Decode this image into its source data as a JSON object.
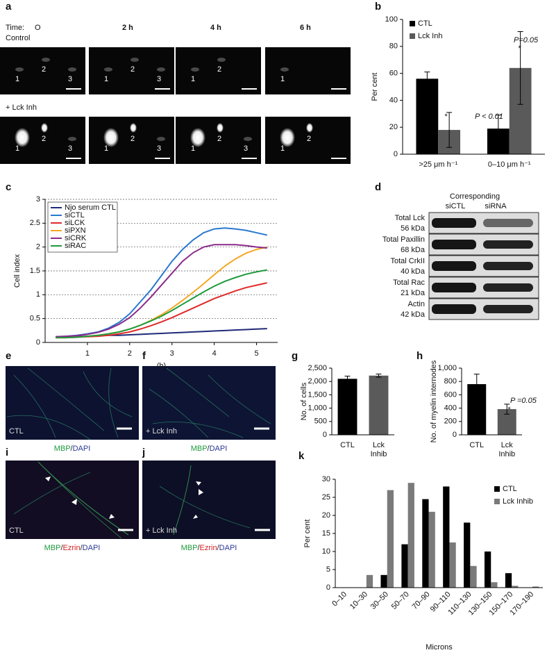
{
  "panel_labels": [
    "a",
    "b",
    "c",
    "d",
    "e",
    "f",
    "g",
    "h",
    "i",
    "j",
    "k"
  ],
  "panel_a": {
    "time_label": "Time:",
    "times": [
      "O",
      "2 h",
      "4 h",
      "6 h"
    ],
    "rows": [
      {
        "label": "Control",
        "cell_labels": [
          [
            "1",
            "2",
            "3"
          ],
          [
            "1",
            "2",
            "3"
          ],
          [
            "1",
            "2"
          ],
          [
            "1"
          ]
        ]
      },
      {
        "label": "+ Lck Inh",
        "cell_labels": [
          [
            "1",
            "2",
            "3"
          ],
          [
            "1",
            "2",
            "3"
          ],
          [
            "1",
            "2",
            "3"
          ],
          [
            "1",
            "2"
          ]
        ]
      }
    ]
  },
  "panel_d": {
    "header": "Corresponding",
    "columns": [
      "siCTL",
      "siRNA"
    ],
    "bands": [
      {
        "name": "Total Lck",
        "size": "56 kDa"
      },
      {
        "name": "Total Paxillin",
        "size": "68 kDa"
      },
      {
        "name": "Total CrkII",
        "size": "40 kDa"
      },
      {
        "name": "Total Rac",
        "size": "21 kDa"
      },
      {
        "name": "Actin",
        "size": "42 kDa"
      }
    ]
  },
  "micrographs": [
    {
      "label": "CTL",
      "caption": [
        {
          "text": "MBP",
          "color": "#1e9a3c"
        },
        {
          "text": "/",
          "color": "#222222"
        },
        {
          "text": "DAPI",
          "color": "#2a3896"
        }
      ]
    },
    {
      "label": "+ Lck Inh",
      "caption": [
        {
          "text": "MBP",
          "color": "#1e9a3c"
        },
        {
          "text": "/",
          "color": "#222222"
        },
        {
          "text": "DAPI",
          "color": "#2a3896"
        }
      ]
    },
    {
      "label": "CTL",
      "caption": [
        {
          "text": "MBP",
          "color": "#1e9a3c"
        },
        {
          "text": "/",
          "color": "#222222"
        },
        {
          "text": "Ezrin",
          "color": "#d42020"
        },
        {
          "text": "/",
          "color": "#222222"
        },
        {
          "text": "DAPI",
          "color": "#2a3896"
        }
      ]
    },
    {
      "label": "+ Lck Inh",
      "caption": [
        {
          "text": "MBP",
          "color": "#1e9a3c"
        },
        {
          "text": "/",
          "color": "#222222"
        },
        {
          "text": "Ezrin",
          "color": "#d42020"
        },
        {
          "text": "/",
          "color": "#222222"
        },
        {
          "text": "DAPI",
          "color": "#2a3896"
        }
      ]
    }
  ],
  "chart_data": [
    {
      "type": "bar",
      "ylabel": "Per cent",
      "categories": [
        ">25 μm h⁻¹",
        "0–10 μm h⁻¹"
      ],
      "series": [
        {
          "name": "CTL",
          "color": "#000000",
          "values": [
            56,
            19
          ],
          "errors": [
            5,
            10
          ]
        },
        {
          "name": "Lck Inh",
          "color": "#5a5a5a",
          "values": [
            18,
            64
          ],
          "errors": [
            13,
            27
          ]
        }
      ],
      "ylim": [
        0,
        100
      ],
      "yticks": [
        0,
        20,
        40,
        60,
        80,
        100
      ],
      "legend": "upper left",
      "annotations": [
        "*",
        "P < 0.01",
        "P=0.05",
        "*"
      ]
    },
    {
      "type": "line",
      "ylabel": "Cell index",
      "xlabel": "(h)",
      "x": [
        0.25,
        0.5,
        0.75,
        1,
        1.25,
        1.5,
        1.75,
        2,
        2.25,
        2.5,
        2.75,
        3,
        3.25,
        3.5,
        3.75,
        4,
        4.25,
        4.5,
        4.75,
        5,
        5.25
      ],
      "series": [
        {
          "name": "Njo serum CTL",
          "color": "#1f2a78",
          "values": [
            0.1,
            0.11,
            0.12,
            0.13,
            0.14,
            0.15,
            0.15,
            0.16,
            0.17,
            0.18,
            0.19,
            0.2,
            0.21,
            0.22,
            0.23,
            0.24,
            0.25,
            0.26,
            0.27,
            0.28,
            0.29
          ]
        },
        {
          "name": "siCTL",
          "color": "#2a78d0",
          "values": [
            0.12,
            0.13,
            0.15,
            0.18,
            0.22,
            0.3,
            0.42,
            0.6,
            0.85,
            1.1,
            1.4,
            1.7,
            1.95,
            2.15,
            2.3,
            2.38,
            2.4,
            2.38,
            2.35,
            2.3,
            2.25
          ]
        },
        {
          "name": "siLCK",
          "color": "#e02a2a",
          "values": [
            0.1,
            0.1,
            0.11,
            0.12,
            0.13,
            0.15,
            0.18,
            0.22,
            0.28,
            0.35,
            0.43,
            0.52,
            0.62,
            0.72,
            0.82,
            0.92,
            1.0,
            1.08,
            1.15,
            1.2,
            1.25
          ]
        },
        {
          "name": "siPXN",
          "color": "#f5a623",
          "values": [
            0.1,
            0.1,
            0.11,
            0.13,
            0.15,
            0.18,
            0.22,
            0.28,
            0.36,
            0.46,
            0.58,
            0.72,
            0.88,
            1.05,
            1.23,
            1.42,
            1.6,
            1.75,
            1.87,
            1.95,
            2.0
          ]
        },
        {
          "name": "siCRK",
          "color": "#8a2a8a",
          "values": [
            0.12,
            0.13,
            0.14,
            0.17,
            0.21,
            0.28,
            0.38,
            0.52,
            0.72,
            0.95,
            1.2,
            1.45,
            1.7,
            1.88,
            2.0,
            2.05,
            2.05,
            2.05,
            2.03,
            2.0,
            1.98
          ]
        },
        {
          "name": "siRAC",
          "color": "#1e9a3c",
          "values": [
            0.1,
            0.1,
            0.11,
            0.13,
            0.15,
            0.18,
            0.22,
            0.28,
            0.36,
            0.45,
            0.55,
            0.67,
            0.8,
            0.93,
            1.06,
            1.18,
            1.28,
            1.36,
            1.43,
            1.48,
            1.52
          ]
        }
      ],
      "xlim": [
        0,
        5.5
      ],
      "xticks": [
        1,
        2,
        3,
        4,
        5
      ],
      "ylim": [
        0,
        3
      ],
      "yticks": [
        0,
        0.5,
        1,
        1.5,
        2,
        2.5,
        3
      ],
      "grid": true,
      "legend": "upper left"
    },
    {
      "type": "bar",
      "ylabel": "No. of cells",
      "categories": [
        "CTL",
        "Lck Inhib"
      ],
      "values": [
        2100,
        2220
      ],
      "errors": [
        100,
        60
      ],
      "colors": [
        "#000000",
        "#5a5a5a"
      ],
      "ylim": [
        0,
        2500
      ],
      "yticks": [
        0,
        500,
        {
          "value": 1000,
          "label": "1,000"
        },
        {
          "value": 1500,
          "label": "1,500"
        },
        {
          "value": 2000,
          "label": "2,000"
        },
        {
          "value": 2500,
          "label": "2,500"
        }
      ]
    },
    {
      "type": "bar",
      "ylabel": "No. of myelin internodes",
      "categories": [
        "CTL",
        "Lck Inhib"
      ],
      "values": [
        760,
        385
      ],
      "errors": [
        150,
        75
      ],
      "colors": [
        "#000000",
        "#5a5a5a"
      ],
      "ylim": [
        0,
        1000
      ],
      "yticks": [
        0,
        200,
        400,
        600,
        800,
        {
          "value": 1000,
          "label": "1,000"
        }
      ],
      "annotations": [
        "P =0.05",
        "*"
      ]
    },
    {
      "type": "bar",
      "ylabel": "Per cent",
      "xlabel": "Microns",
      "categories": [
        "0–10",
        "10–30",
        "30–50",
        "50–70",
        "70–90",
        "90–110",
        "110–130",
        "130–150",
        "150–170",
        "170–190"
      ],
      "series": [
        {
          "name": "CTL",
          "color": "#000000",
          "values": [
            0,
            0,
            3.5,
            12,
            24.5,
            28,
            18,
            10,
            4,
            0
          ]
        },
        {
          "name": "Lck Inhib",
          "color": "#7a7a7a",
          "values": [
            0,
            3.5,
            27,
            29,
            21,
            12.5,
            6,
            1.5,
            0.5,
            0.3
          ]
        }
      ],
      "ylim": [
        0,
        30
      ],
      "yticks": [
        0,
        5,
        10,
        15,
        20,
        25,
        30
      ],
      "legend": "upper right"
    }
  ]
}
